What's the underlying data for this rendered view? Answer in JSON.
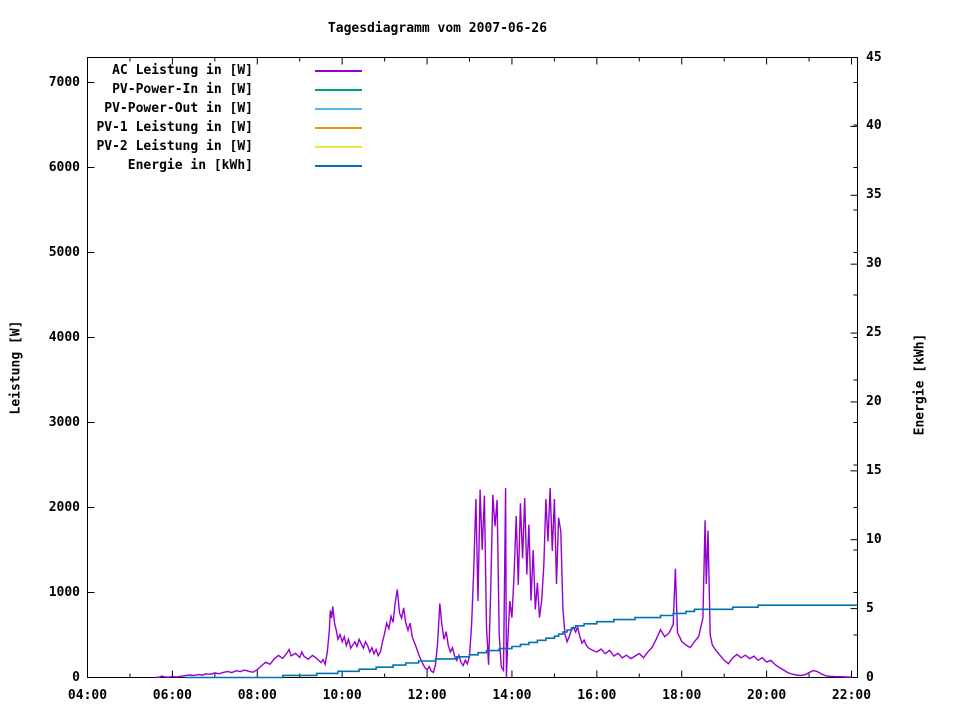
{
  "page": {
    "background": "#ffffff"
  },
  "chart_data": {
    "type": "line",
    "title": "Tagesdiagramm vom 2007-06-26",
    "grid": false,
    "legend_position": "top-left-inside",
    "x_axis": {
      "start_hour": 4,
      "end_hour": 22,
      "major_tick_every_hours": 2,
      "minor_tick_every_hours": 1,
      "tick_labels": [
        "04:00",
        "06:00",
        "08:00",
        "10:00",
        "12:00",
        "14:00",
        "16:00",
        "18:00",
        "20:00",
        "22:00"
      ]
    },
    "y_left_axis": {
      "label": "Leistung [W]",
      "min": 0,
      "max_tick": 7000,
      "tick_step": 1000,
      "minor_tick_step_right_mirror": 500,
      "tick_labels": [
        "0",
        "1000",
        "2000",
        "3000",
        "4000",
        "5000",
        "6000",
        "7000"
      ]
    },
    "y_right_axis": {
      "label": "Energie [kWh]",
      "min": 0,
      "max": 45,
      "tick_step": 5,
      "tick_labels": [
        "0",
        "5",
        "10",
        "15",
        "20",
        "25",
        "30",
        "35",
        "40",
        "45"
      ]
    },
    "series": [
      {
        "name": "AC Leistung in [W]",
        "color": "#9400d3",
        "axis": "left",
        "style": "line",
        "points": [
          [
            5.6,
            0
          ],
          [
            5.7,
            5
          ],
          [
            5.75,
            18
          ],
          [
            5.8,
            8
          ],
          [
            5.9,
            4
          ],
          [
            6.0,
            10
          ],
          [
            6.1,
            6
          ],
          [
            6.2,
            14
          ],
          [
            6.3,
            22
          ],
          [
            6.4,
            30
          ],
          [
            6.5,
            24
          ],
          [
            6.6,
            34
          ],
          [
            6.7,
            28
          ],
          [
            6.8,
            44
          ],
          [
            6.9,
            38
          ],
          [
            7.0,
            54
          ],
          [
            7.1,
            44
          ],
          [
            7.2,
            60
          ],
          [
            7.3,
            70
          ],
          [
            7.4,
            58
          ],
          [
            7.5,
            80
          ],
          [
            7.6,
            68
          ],
          [
            7.7,
            88
          ],
          [
            7.8,
            72
          ],
          [
            7.9,
            62
          ],
          [
            8.0,
            92
          ],
          [
            8.1,
            140
          ],
          [
            8.2,
            180
          ],
          [
            8.3,
            155
          ],
          [
            8.4,
            220
          ],
          [
            8.5,
            260
          ],
          [
            8.6,
            225
          ],
          [
            8.7,
            290
          ],
          [
            8.75,
            330
          ],
          [
            8.8,
            255
          ],
          [
            8.9,
            285
          ],
          [
            9.0,
            235
          ],
          [
            9.05,
            300
          ],
          [
            9.1,
            250
          ],
          [
            9.2,
            215
          ],
          [
            9.3,
            260
          ],
          [
            9.4,
            225
          ],
          [
            9.5,
            175
          ],
          [
            9.55,
            210
          ],
          [
            9.6,
            155
          ],
          [
            9.65,
            300
          ],
          [
            9.7,
            560
          ],
          [
            9.72,
            790
          ],
          [
            9.75,
            700
          ],
          [
            9.78,
            835
          ],
          [
            9.82,
            640
          ],
          [
            9.86,
            560
          ],
          [
            9.9,
            450
          ],
          [
            9.95,
            505
          ],
          [
            10.0,
            420
          ],
          [
            10.05,
            480
          ],
          [
            10.1,
            375
          ],
          [
            10.15,
            450
          ],
          [
            10.2,
            345
          ],
          [
            10.3,
            420
          ],
          [
            10.35,
            365
          ],
          [
            10.4,
            450
          ],
          [
            10.45,
            395
          ],
          [
            10.5,
            345
          ],
          [
            10.55,
            420
          ],
          [
            10.6,
            375
          ],
          [
            10.65,
            300
          ],
          [
            10.7,
            350
          ],
          [
            10.75,
            280
          ],
          [
            10.8,
            330
          ],
          [
            10.85,
            258
          ],
          [
            10.9,
            300
          ],
          [
            10.95,
            420
          ],
          [
            11.0,
            520
          ],
          [
            11.05,
            640
          ],
          [
            11.1,
            575
          ],
          [
            11.15,
            720
          ],
          [
            11.2,
            650
          ],
          [
            11.25,
            880
          ],
          [
            11.3,
            1035
          ],
          [
            11.35,
            760
          ],
          [
            11.4,
            700
          ],
          [
            11.45,
            820
          ],
          [
            11.5,
            640
          ],
          [
            11.55,
            555
          ],
          [
            11.6,
            640
          ],
          [
            11.65,
            480
          ],
          [
            11.7,
            415
          ],
          [
            11.75,
            350
          ],
          [
            11.8,
            275
          ],
          [
            11.85,
            215
          ],
          [
            11.9,
            160
          ],
          [
            11.95,
            115
          ],
          [
            12.0,
            90
          ],
          [
            12.05,
            130
          ],
          [
            12.1,
            75
          ],
          [
            12.15,
            60
          ],
          [
            12.2,
            150
          ],
          [
            12.25,
            420
          ],
          [
            12.3,
            870
          ],
          [
            12.35,
            615
          ],
          [
            12.4,
            450
          ],
          [
            12.45,
            540
          ],
          [
            12.5,
            375
          ],
          [
            12.55,
            300
          ],
          [
            12.6,
            350
          ],
          [
            12.65,
            250
          ],
          [
            12.7,
            200
          ],
          [
            12.75,
            260
          ],
          [
            12.8,
            180
          ],
          [
            12.85,
            140
          ],
          [
            12.9,
            205
          ],
          [
            12.95,
            160
          ],
          [
            13.0,
            255
          ],
          [
            13.05,
            620
          ],
          [
            13.1,
            1260
          ],
          [
            13.15,
            2100
          ],
          [
            13.2,
            900
          ],
          [
            13.25,
            2210
          ],
          [
            13.3,
            1500
          ],
          [
            13.35,
            2140
          ],
          [
            13.4,
            600
          ],
          [
            13.45,
            150
          ],
          [
            13.5,
            1020
          ],
          [
            13.55,
            2150
          ],
          [
            13.6,
            1780
          ],
          [
            13.65,
            2090
          ],
          [
            13.7,
            500
          ],
          [
            13.75,
            125
          ],
          [
            13.8,
            85
          ],
          [
            13.85,
            2230
          ],
          [
            13.87,
            0
          ],
          [
            13.9,
            410
          ],
          [
            13.95,
            900
          ],
          [
            14.0,
            705
          ],
          [
            14.05,
            1210
          ],
          [
            14.1,
            1900
          ],
          [
            14.15,
            1090
          ],
          [
            14.2,
            2050
          ],
          [
            14.25,
            1400
          ],
          [
            14.3,
            2110
          ],
          [
            14.35,
            1210
          ],
          [
            14.4,
            1800
          ],
          [
            14.45,
            905
          ],
          [
            14.5,
            1500
          ],
          [
            14.55,
            800
          ],
          [
            14.6,
            1110
          ],
          [
            14.65,
            705
          ],
          [
            14.7,
            910
          ],
          [
            14.75,
            1310
          ],
          [
            14.8,
            2100
          ],
          [
            14.85,
            1600
          ],
          [
            14.9,
            2230
          ],
          [
            14.95,
            1490
          ],
          [
            15.0,
            2100
          ],
          [
            15.05,
            1100
          ],
          [
            15.1,
            1880
          ],
          [
            15.15,
            1720
          ],
          [
            15.2,
            810
          ],
          [
            15.25,
            505
          ],
          [
            15.3,
            420
          ],
          [
            15.35,
            480
          ],
          [
            15.4,
            560
          ],
          [
            15.45,
            590
          ],
          [
            15.5,
            535
          ],
          [
            15.55,
            590
          ],
          [
            15.6,
            480
          ],
          [
            15.65,
            405
          ],
          [
            15.7,
            440
          ],
          [
            15.75,
            380
          ],
          [
            15.8,
            350
          ],
          [
            15.9,
            320
          ],
          [
            16.0,
            300
          ],
          [
            16.1,
            335
          ],
          [
            16.2,
            280
          ],
          [
            16.3,
            320
          ],
          [
            16.4,
            252
          ],
          [
            16.5,
            285
          ],
          [
            16.6,
            232
          ],
          [
            16.7,
            262
          ],
          [
            16.8,
            222
          ],
          [
            16.9,
            252
          ],
          [
            17.0,
            282
          ],
          [
            17.1,
            232
          ],
          [
            17.2,
            300
          ],
          [
            17.3,
            352
          ],
          [
            17.4,
            452
          ],
          [
            17.5,
            562
          ],
          [
            17.6,
            480
          ],
          [
            17.7,
            522
          ],
          [
            17.8,
            622
          ],
          [
            17.85,
            1280
          ],
          [
            17.9,
            522
          ],
          [
            17.95,
            480
          ],
          [
            18.0,
            422
          ],
          [
            18.1,
            382
          ],
          [
            18.2,
            352
          ],
          [
            18.3,
            422
          ],
          [
            18.4,
            482
          ],
          [
            18.5,
            702
          ],
          [
            18.55,
            1850
          ],
          [
            18.58,
            1100
          ],
          [
            18.62,
            1730
          ],
          [
            18.67,
            502
          ],
          [
            18.72,
            382
          ],
          [
            18.8,
            322
          ],
          [
            18.9,
            262
          ],
          [
            19.0,
            202
          ],
          [
            19.1,
            162
          ],
          [
            19.2,
            232
          ],
          [
            19.3,
            272
          ],
          [
            19.4,
            232
          ],
          [
            19.5,
            262
          ],
          [
            19.6,
            222
          ],
          [
            19.7,
            252
          ],
          [
            19.8,
            202
          ],
          [
            19.9,
            232
          ],
          [
            20.0,
            182
          ],
          [
            20.1,
            202
          ],
          [
            20.2,
            152
          ],
          [
            20.3,
            118
          ],
          [
            20.4,
            88
          ],
          [
            20.5,
            58
          ],
          [
            20.6,
            40
          ],
          [
            20.7,
            30
          ],
          [
            20.8,
            24
          ],
          [
            20.9,
            32
          ],
          [
            21.0,
            58
          ],
          [
            21.1,
            82
          ],
          [
            21.2,
            68
          ],
          [
            21.3,
            40
          ],
          [
            21.4,
            20
          ],
          [
            21.5,
            14
          ],
          [
            21.6,
            10
          ],
          [
            21.7,
            9
          ],
          [
            21.8,
            8
          ],
          [
            21.9,
            6
          ],
          [
            22.0,
            5
          ]
        ]
      },
      {
        "name": "PV-Power-In in [W]",
        "color": "#009e73",
        "axis": "left",
        "style": "line",
        "visible_in_plot": false,
        "points": []
      },
      {
        "name": "PV-Power-Out in [W]",
        "color": "#56b4e9",
        "axis": "left",
        "style": "line",
        "visible_in_plot": false,
        "points": []
      },
      {
        "name": "PV-1 Leistung in [W]",
        "color": "#e69f00",
        "axis": "left",
        "style": "line",
        "visible_in_plot": false,
        "points": []
      },
      {
        "name": "PV-2 Leistung in [W]",
        "color": "#f0e442",
        "axis": "left",
        "style": "line",
        "visible_in_plot": false,
        "points": []
      },
      {
        "name": "Energie in [kWh]",
        "color": "#0072b2",
        "axis": "right",
        "style": "steps",
        "points": [
          [
            6.3,
            0
          ],
          [
            7.0,
            0.02
          ],
          [
            7.5,
            0.05
          ],
          [
            8.0,
            0.08
          ],
          [
            8.3,
            0.1
          ],
          [
            8.6,
            0.16
          ],
          [
            9.0,
            0.25
          ],
          [
            9.3,
            0.3
          ],
          [
            9.6,
            0.36
          ],
          [
            9.8,
            0.44
          ],
          [
            10.0,
            0.5
          ],
          [
            10.3,
            0.6
          ],
          [
            10.6,
            0.7
          ],
          [
            10.9,
            0.8
          ],
          [
            11.1,
            0.9
          ],
          [
            11.3,
            1.0
          ],
          [
            11.5,
            1.1
          ],
          [
            11.75,
            1.2
          ],
          [
            12.0,
            1.3
          ],
          [
            12.3,
            1.4
          ],
          [
            12.6,
            1.5
          ],
          [
            12.9,
            1.6
          ],
          [
            13.1,
            1.75
          ],
          [
            13.3,
            1.9
          ],
          [
            13.5,
            2.05
          ],
          [
            13.7,
            2.15
          ],
          [
            13.9,
            2.22
          ],
          [
            14.1,
            2.35
          ],
          [
            14.3,
            2.5
          ],
          [
            14.5,
            2.65
          ],
          [
            14.7,
            2.8
          ],
          [
            14.9,
            3.0
          ],
          [
            15.1,
            3.3
          ],
          [
            15.3,
            3.6
          ],
          [
            15.5,
            3.8
          ],
          [
            15.7,
            3.95
          ],
          [
            16.0,
            4.1
          ],
          [
            16.3,
            4.2
          ],
          [
            16.6,
            4.3
          ],
          [
            17.0,
            4.4
          ],
          [
            17.4,
            4.5
          ],
          [
            17.7,
            4.62
          ],
          [
            18.0,
            4.8
          ],
          [
            18.2,
            4.95
          ],
          [
            18.5,
            5.0
          ],
          [
            18.8,
            5.05
          ],
          [
            19.2,
            5.1
          ],
          [
            19.8,
            5.25
          ],
          [
            20.5,
            5.28
          ],
          [
            21.0,
            5.3
          ],
          [
            22.0,
            5.3
          ]
        ]
      }
    ]
  }
}
